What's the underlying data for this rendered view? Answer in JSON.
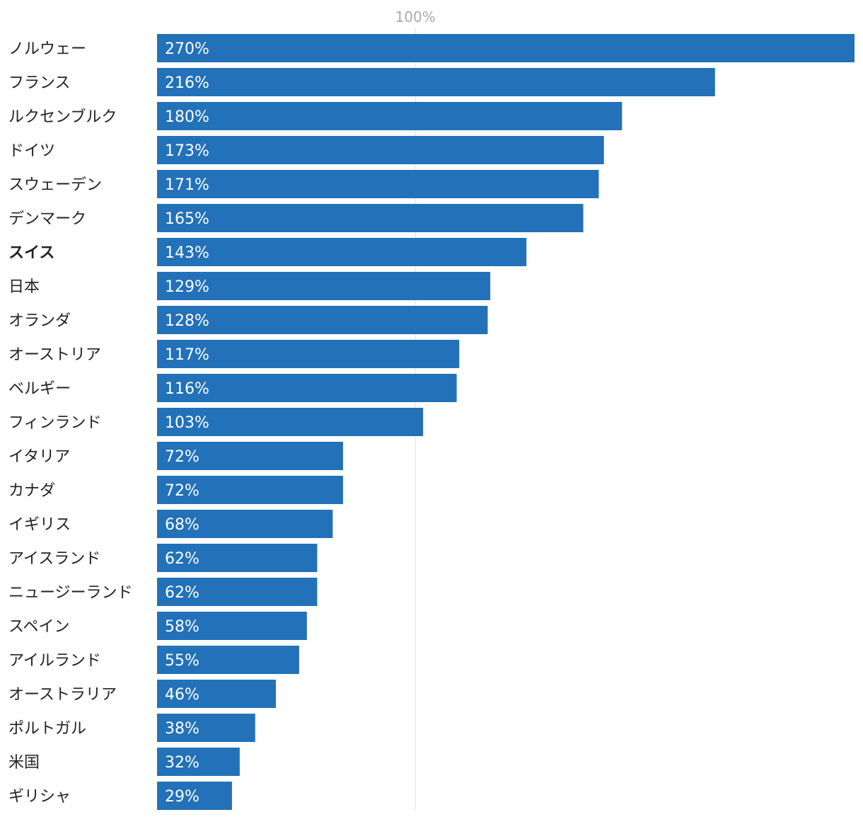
{
  "chart_data": {
    "type": "bar",
    "orientation": "horizontal",
    "title": "",
    "xlabel": "",
    "ylabel": "",
    "xlim": [
      0,
      270
    ],
    "grid": false,
    "reference_line": {
      "value": 100,
      "label": "100%"
    },
    "bar_color": "#2271b9",
    "value_suffix": "%",
    "highlight_category": "スイス",
    "categories": [
      "ノルウェー",
      "フランス",
      "ルクセンブルク",
      "ドイツ",
      "スウェーデン",
      "デンマーク",
      "スイス",
      "日本",
      "オランダ",
      "オーストリア",
      "ベルギー",
      "フィンランド",
      "イタリア",
      "カナダ",
      "イギリス",
      "アイスランド",
      "ニュージーランド",
      "スペイン",
      "アイルランド",
      "オーストラリア",
      "ポルトガル",
      "米国",
      "ギリシャ"
    ],
    "values": [
      270,
      216,
      180,
      173,
      171,
      165,
      143,
      129,
      128,
      117,
      116,
      103,
      72,
      72,
      68,
      62,
      62,
      58,
      55,
      46,
      38,
      32,
      29
    ]
  }
}
